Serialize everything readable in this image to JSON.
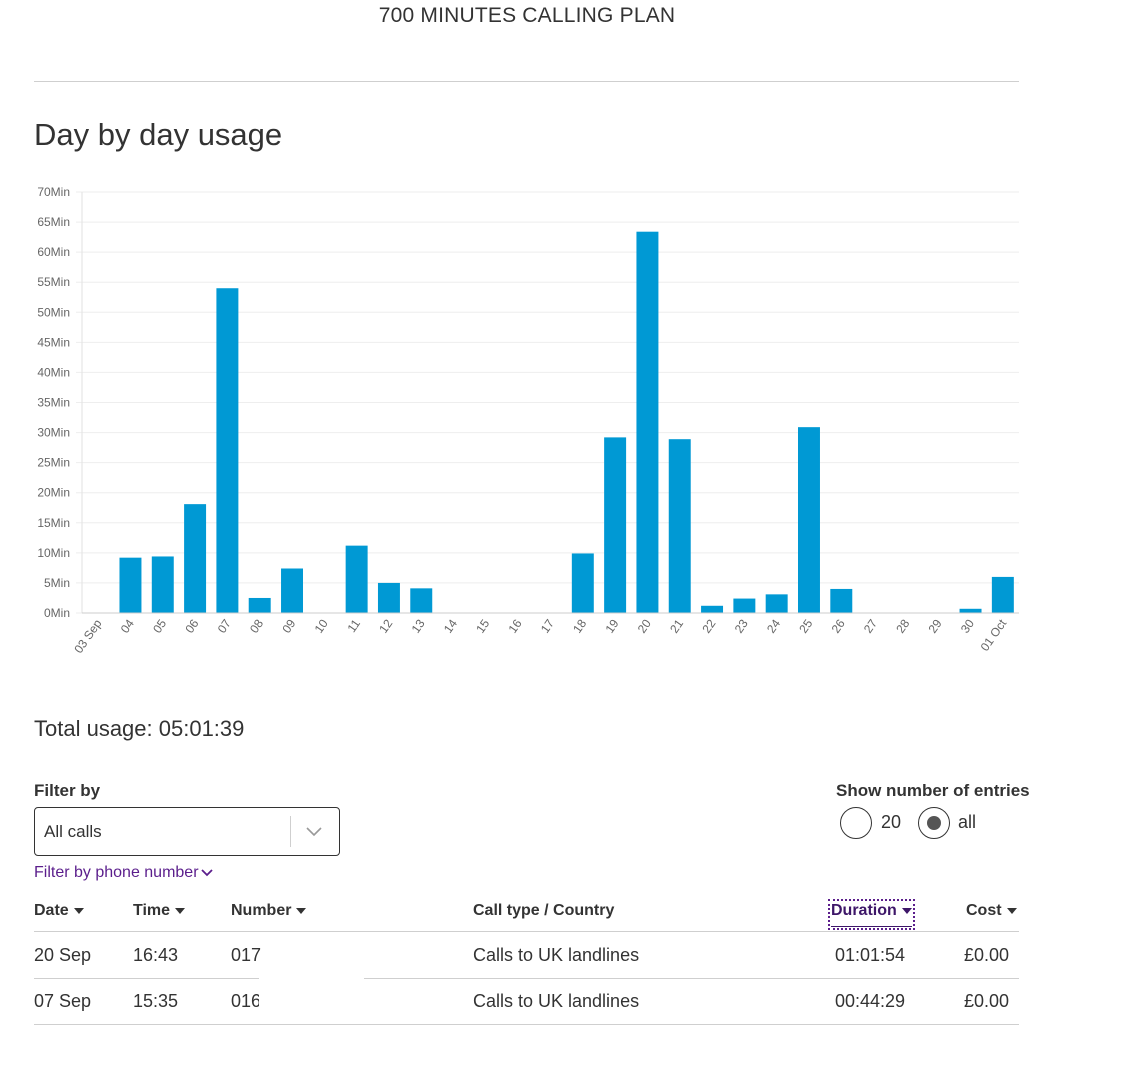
{
  "plan_title": "700 MINUTES CALLING PLAN",
  "section_heading": "Day by day usage",
  "colors": {
    "bar": "#0099d4",
    "link": "#5b1e8c",
    "text": "#333333",
    "grid": "#eeeeee"
  },
  "chart_data": {
    "type": "bar",
    "title": "",
    "xlabel": "",
    "ylabel": "",
    "categories": [
      "03 Sep",
      "04",
      "05",
      "06",
      "07",
      "08",
      "09",
      "10",
      "11",
      "12",
      "13",
      "14",
      "15",
      "16",
      "17",
      "18",
      "19",
      "20",
      "21",
      "22",
      "23",
      "24",
      "25",
      "26",
      "27",
      "28",
      "29",
      "30",
      "01 Oct"
    ],
    "values": [
      0,
      9.2,
      9.4,
      18.1,
      54,
      2.5,
      7.4,
      0,
      11.2,
      5,
      4.1,
      0,
      0,
      0,
      0,
      9.9,
      29.2,
      63.4,
      28.9,
      1.2,
      2.4,
      3.1,
      30.9,
      4,
      0,
      0,
      0,
      0.7,
      6
    ],
    "yticks": [
      "0Min",
      "5Min",
      "10Min",
      "15Min",
      "20Min",
      "25Min",
      "30Min",
      "35Min",
      "40Min",
      "45Min",
      "50Min",
      "55Min",
      "60Min",
      "65Min",
      "70Min"
    ],
    "ylim": [
      0,
      70
    ],
    "grid": true,
    "legend": "none"
  },
  "total_usage": "Total usage: 05:01:39",
  "filter": {
    "label": "Filter by",
    "selected": "All calls",
    "phone_link": "Filter by phone number"
  },
  "entries": {
    "label": "Show number of entries",
    "options": [
      "20",
      "all"
    ],
    "selected": "all"
  },
  "table": {
    "headers": [
      "Date",
      "Time",
      "Number",
      "Call type / Country",
      "Duration",
      "Cost"
    ],
    "rows": [
      [
        "20 Sep",
        "16:43",
        "017",
        "Calls to UK landlines",
        "01:01:54",
        "£0.00"
      ],
      [
        "07 Sep",
        "15:35",
        "016",
        "Calls to UK landlines",
        "00:44:29",
        "£0.00"
      ]
    ]
  }
}
